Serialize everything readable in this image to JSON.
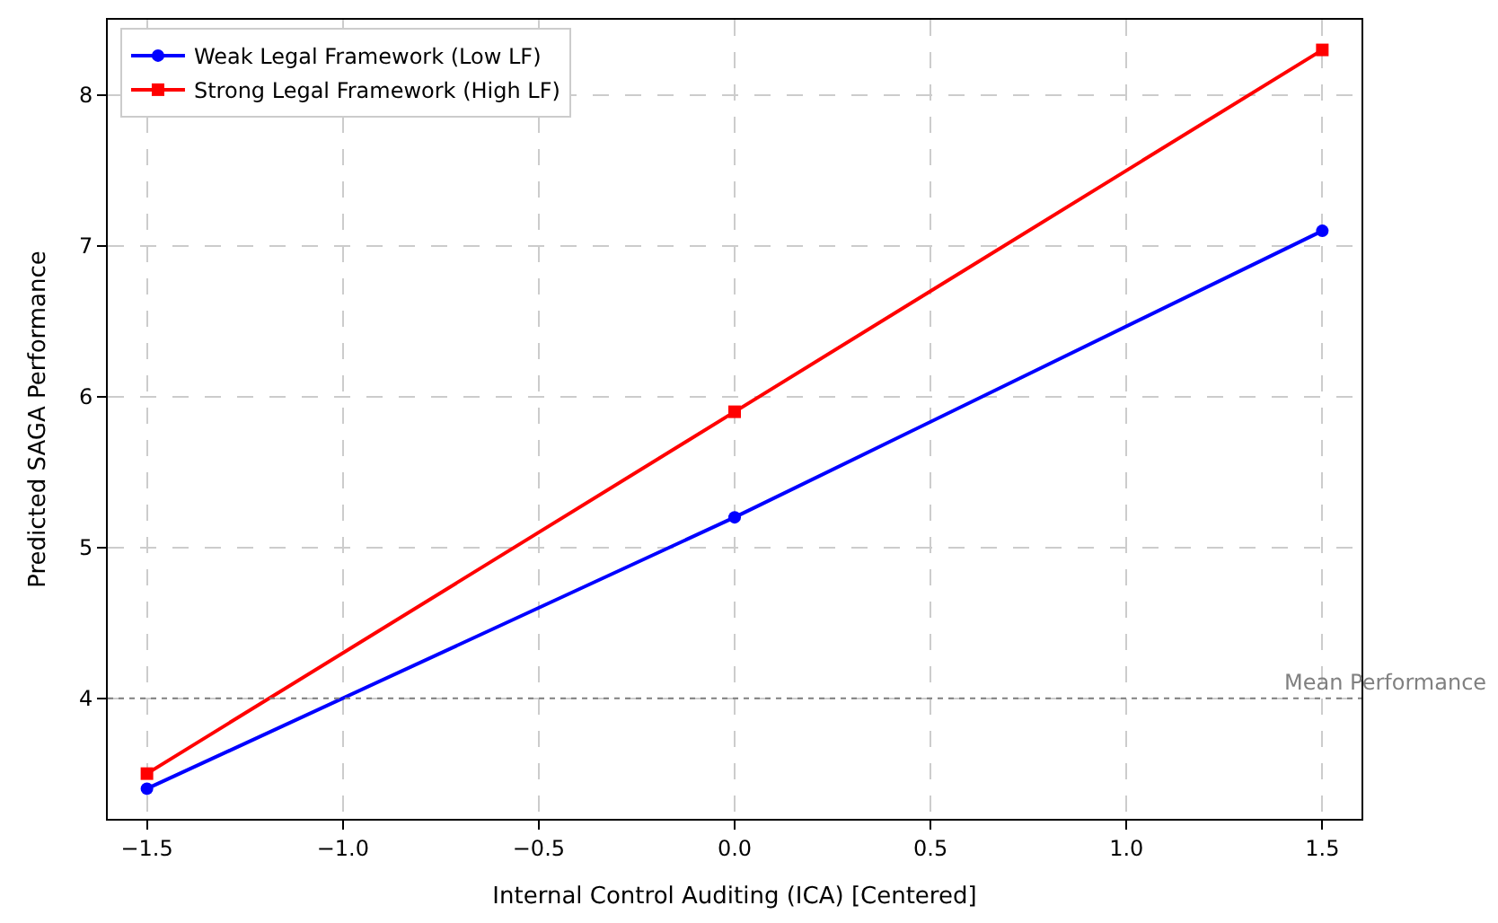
{
  "chart_data": {
    "type": "line",
    "xlabel": "Internal Control Auditing (ICA) [Centered]",
    "ylabel": "Predicted SAGA Performance",
    "x": [
      -1.5,
      0.0,
      1.5
    ],
    "series": [
      {
        "name": "Weak Legal Framework (Low LF)",
        "color": "#0000ff",
        "values": [
          3.4,
          5.2,
          7.1
        ],
        "marker": "circle"
      },
      {
        "name": "Strong Legal Framework (High LF)",
        "color": "#ff0000",
        "values": [
          3.5,
          5.9,
          8.3
        ],
        "marker": "square"
      }
    ],
    "xlim": [
      -1.6,
      1.6
    ],
    "xticks": [
      {
        "value": -1.5,
        "label": "−1.5"
      },
      {
        "value": -1.0,
        "label": "−1.0"
      },
      {
        "value": -0.5,
        "label": "−0.5"
      },
      {
        "value": 0,
        "label": "0.0"
      },
      {
        "value": 0.5,
        "label": "0.5"
      },
      {
        "value": 1.0,
        "label": "1.0"
      },
      {
        "value": 1.5,
        "label": "1.5"
      }
    ],
    "ylim": [
      3.2,
      8.5
    ],
    "yticks": [
      4,
      5,
      6,
      7,
      8
    ],
    "ref_lines": [
      {
        "axis": "y",
        "value": 4,
        "label": "Mean Performance",
        "color": "#808080",
        "line_style": "dotted"
      }
    ],
    "grid": true,
    "legend": "top left",
    "line_style": "solid"
  }
}
